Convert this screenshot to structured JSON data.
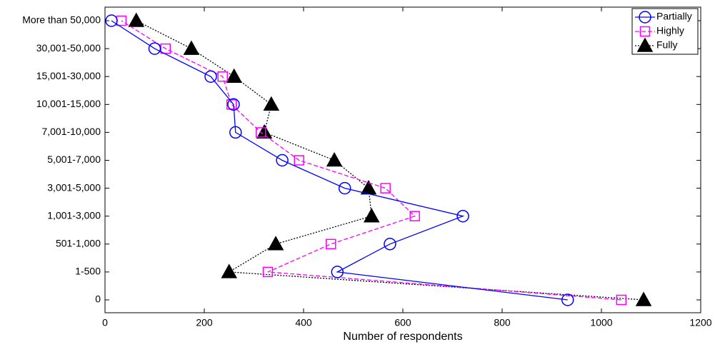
{
  "chart_data": {
    "type": "line",
    "orientation": "horizontal",
    "x_label": "Number of respondents",
    "categories": [
      "0",
      "1-500",
      "501-1,000",
      "1,001-3,000",
      "3,001-5,000",
      "5,001-7,000",
      "7,001-10,000",
      "10,001-15,000",
      "15,001-30,000",
      "30,001-50,000",
      "More than 50,000"
    ],
    "series": [
      {
        "name": "Partially",
        "color": "#0000ff",
        "dash": "solid",
        "marker": "circle",
        "values": [
          932,
          468,
          574,
          721,
          483,
          357,
          263,
          259,
          213,
          100,
          13
        ]
      },
      {
        "name": "Highly",
        "color": "#ff00ff",
        "dash": "dashed",
        "marker": "square",
        "values": [
          1040,
          328,
          455,
          624,
          565,
          391,
          314,
          255,
          237,
          122,
          33
        ]
      },
      {
        "name": "Fully",
        "color": "#000000",
        "dash": "dotted",
        "marker": "triangle",
        "values": [
          1085,
          250,
          344,
          537,
          531,
          462,
          321,
          335,
          260,
          174,
          63
        ]
      }
    ],
    "xlim": [
      0,
      1200
    ],
    "xticks": [
      0,
      200,
      400,
      600,
      800,
      1000,
      1200
    ],
    "legend": "upper right"
  }
}
